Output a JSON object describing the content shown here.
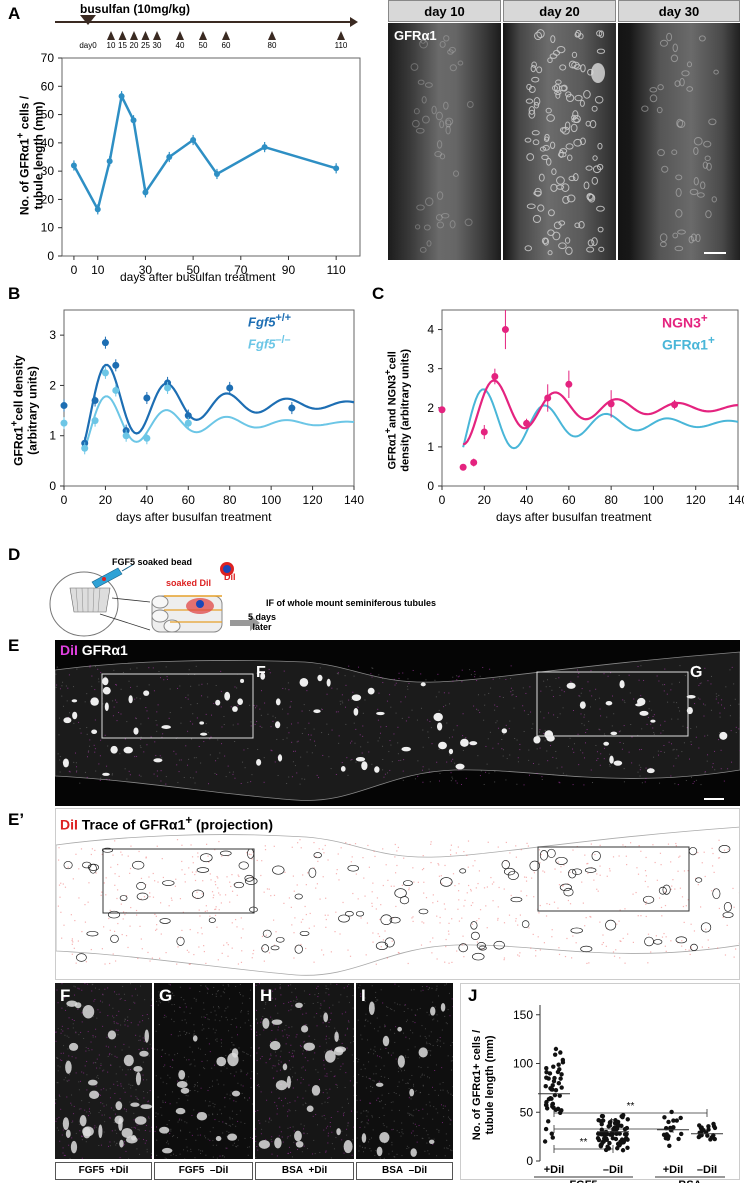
{
  "panels": {
    "A": "A",
    "B": "B",
    "C": "C",
    "D": "D",
    "E": "E",
    "E2": "E’",
    "F": "F",
    "G": "G",
    "H": "H",
    "I": "I",
    "J": "J"
  },
  "panelA": {
    "busulfan": "busulfan (10mg/kg)",
    "days": [
      "day0",
      "10",
      "15",
      "20",
      "25",
      "30",
      "40",
      "50",
      "60",
      "80",
      "110"
    ],
    "ylabel1": "No. of GFRα1",
    "ylabel2": "cells /",
    "ylabel3": "tubule length (mm)",
    "xlabel": "days after busulfan treatment",
    "yticks": [
      "0",
      "10",
      "20",
      "30",
      "40",
      "50",
      "60",
      "70"
    ],
    "xticks": [
      "0",
      "10",
      "30",
      "50",
      "70",
      "90",
      "110"
    ]
  },
  "micrographs": {
    "headers": [
      "day 10",
      "day 20",
      "day 30"
    ],
    "stain": "GFRα1"
  },
  "panelB": {
    "ylabel1": "GFRα1",
    "ylabel2": "cell density",
    "ylabel3": "(arbitrary units)",
    "xlabel": "days after busulfan treatment",
    "legend1": "Fgf5",
    "legend1sup": "+/+",
    "legend2": "Fgf5",
    "legend2sup": "–/–",
    "yticks": [
      "0",
      "1",
      "2",
      "3"
    ],
    "xticks": [
      "0",
      "20",
      "40",
      "60",
      "80",
      "100",
      "120",
      "140"
    ]
  },
  "panelC": {
    "ylabel1": "GFRα1",
    "ylabel2": "and NGN3",
    "ylabel3": "cell",
    "ylabel4": "density (arbitrary units)",
    "xlabel": "days after busulfan treatment",
    "legend1": "NGN3",
    "legend2": "GFRα1",
    "yticks": [
      "0",
      "1",
      "2",
      "3",
      "4"
    ],
    "xticks": [
      "0",
      "20",
      "40",
      "60",
      "80",
      "100",
      "120",
      "140"
    ]
  },
  "panelD": {
    "bead": "FGF5 soaked bead",
    "dil": "DiI",
    "soaked": "soaked DiI",
    "days1": "5 days",
    "days2": "later",
    "if": "IF of whole mount seminiferous tubules"
  },
  "panelE": {
    "dil": "DiI",
    "stain": "GFRα1",
    "boxF": "F",
    "boxG": "G"
  },
  "panelE2": {
    "dil": "DiI",
    "trace": "Trace of GFRα1",
    "proj": "(projection)"
  },
  "bottomCaps": [
    {
      "a": "FGF5",
      "b": "+DiI"
    },
    {
      "a": "FGF5",
      "b": "–DiI"
    },
    {
      "a": "BSA",
      "b": "+DiI"
    },
    {
      "a": "BSA",
      "b": "–DiI"
    }
  ],
  "panelJ": {
    "ylabel1": "No. of GFRα1+ cells /",
    "ylabel2": "tubule length (mm)",
    "yticks": [
      "0",
      "50",
      "100",
      "150"
    ],
    "groups": [
      "+DiI",
      "–DiI",
      "+DiI",
      "–DiI"
    ],
    "conditions": [
      "FGF5",
      "BSA"
    ],
    "sig": [
      "**",
      "**",
      "**"
    ]
  },
  "chart_data": [
    {
      "type": "line",
      "x": [
        0,
        10,
        15,
        20,
        25,
        30,
        40,
        50,
        60,
        80,
        110
      ],
      "series": [
        {
          "values": [
            32,
            16.5,
            33.5,
            56.5,
            48,
            22.5,
            35,
            41,
            29,
            38.5,
            31
          ]
        }
      ],
      "xlabel": "days after busulfan treatment",
      "ylabel": "No. of GFRα1+ cells / tubule length (mm)",
      "ylim": [
        0,
        70
      ],
      "xlim": [
        -5,
        120
      ],
      "color": "#2e8fc4"
    },
    {
      "type": "line",
      "series": [
        {
          "name": "Fgf5+/+",
          "x": [
            0,
            10,
            15,
            20,
            25,
            30,
            40,
            50,
            60,
            80,
            110
          ],
          "values": [
            1.6,
            0.85,
            1.7,
            2.85,
            2.4,
            1.1,
            1.75,
            2.05,
            1.4,
            1.95,
            1.55
          ]
        },
        {
          "name": "Fgf5–/–",
          "x": [
            0,
            10,
            15,
            20,
            25,
            30,
            40,
            50,
            60
          ],
          "values": [
            1.25,
            0.75,
            1.3,
            2.25,
            1.9,
            1.0,
            0.95,
            1.95,
            1.25
          ]
        }
      ],
      "xlabel": "days after busulfan treatment",
      "ylim": [
        0,
        3.5
      ],
      "xlim": [
        0,
        140
      ],
      "colors": [
        "#1d6eb3",
        "#6cc6e6"
      ]
    },
    {
      "type": "line",
      "series": [
        {
          "name": "NGN3+",
          "x": [
            0,
            10,
            15,
            20,
            25,
            30,
            40,
            50,
            60,
            80,
            110
          ],
          "values": [
            1.95,
            0.48,
            0.6,
            1.38,
            2.8,
            4.0,
            1.6,
            2.25,
            2.6,
            2.1,
            2.08
          ]
        },
        {
          "name": "GFRα1+",
          "x": [],
          "values": []
        }
      ],
      "xlabel": "days after busulfan treatment",
      "ylim": [
        0,
        4.5
      ],
      "xlim": [
        0,
        140
      ],
      "colors": [
        "#e4237f",
        "#49b6d8"
      ]
    },
    {
      "type": "scatter",
      "categories": [
        "FGF5 +DiI",
        "FGF5 –DiI",
        "BSA +DiI",
        "BSA –DiI"
      ],
      "medians": [
        69,
        30,
        32,
        28
      ],
      "ylim": [
        0,
        160
      ],
      "n": [
        48,
        80,
        18,
        20
      ]
    }
  ]
}
